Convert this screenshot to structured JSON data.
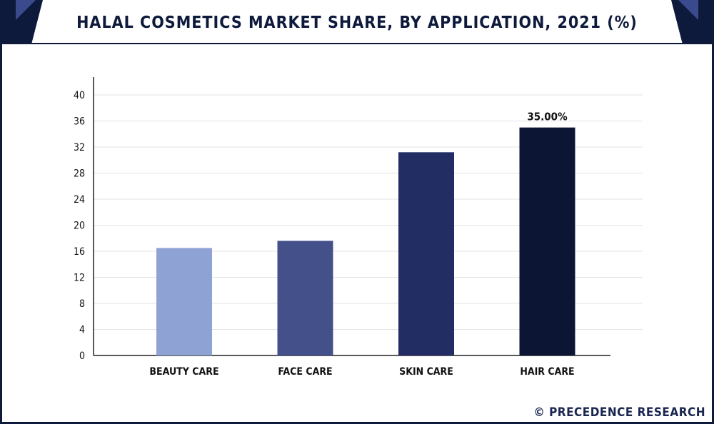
{
  "title": "HALAL COSMETICS MARKET SHARE, BY APPLICATION, 2021 (%)",
  "watermark": "© PRECEDENCE RESEARCH",
  "colors": {
    "frame": "#0e1a3c",
    "corner_accent": "#3b4a8c"
  },
  "chart_data": {
    "type": "bar",
    "categories": [
      "BEAUTY CARE",
      "FACE CARE",
      "SKIN CARE",
      "HAIR CARE"
    ],
    "values": [
      16.5,
      17.6,
      31.2,
      35.0
    ],
    "bar_colors": [
      "#8fa2d4",
      "#44508a",
      "#212d63",
      "#0d1535"
    ],
    "data_labels": [
      "",
      "",
      "",
      "35.00%"
    ],
    "yticks": [
      "0",
      "4",
      "8",
      "12",
      "16",
      "20",
      "24",
      "28",
      "32",
      "36",
      "40"
    ],
    "ylim": [
      0,
      40
    ],
    "grid": true,
    "title": "HALAL COSMETICS MARKET SHARE, BY APPLICATION, 2021 (%)",
    "xlabel": "",
    "ylabel": ""
  }
}
